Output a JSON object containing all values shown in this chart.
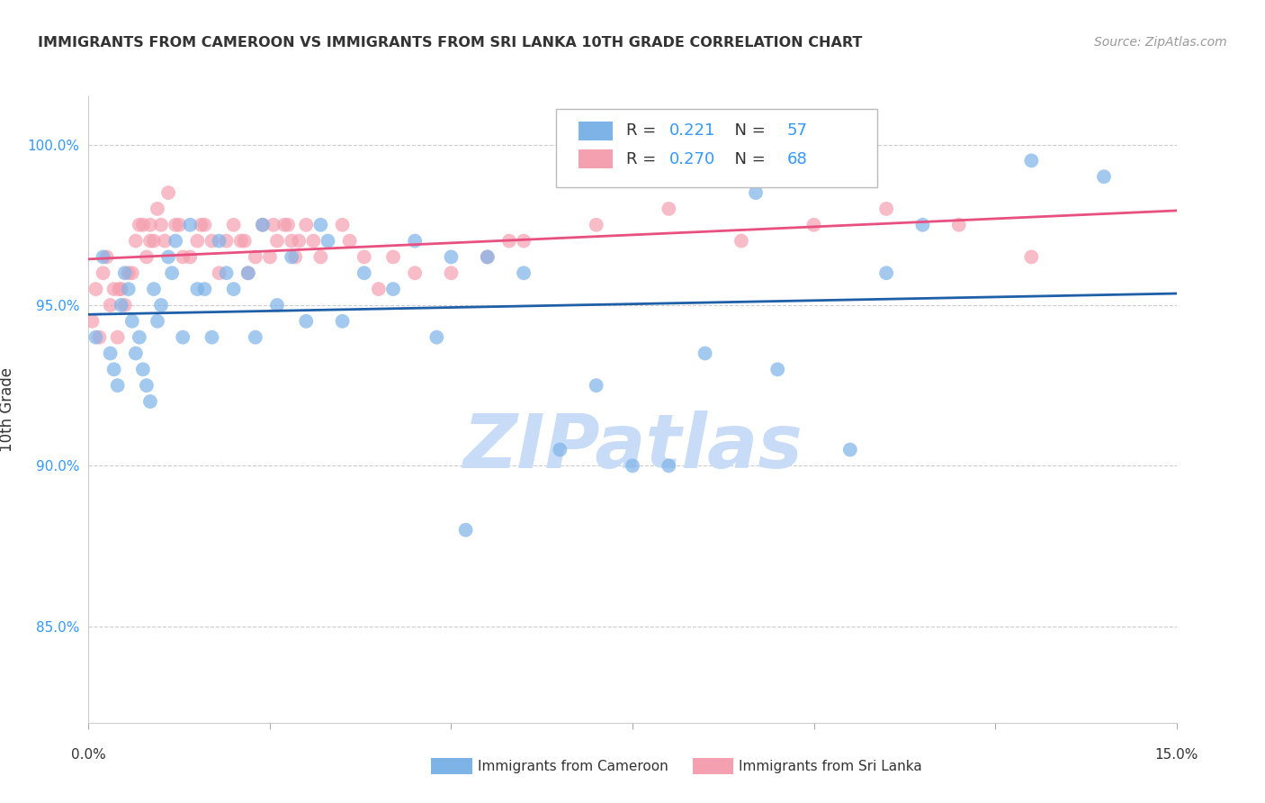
{
  "title": "IMMIGRANTS FROM CAMEROON VS IMMIGRANTS FROM SRI LANKA 10TH GRADE CORRELATION CHART",
  "source": "Source: ZipAtlas.com",
  "ylabel": "10th Grade",
  "xlim": [
    0.0,
    15.0
  ],
  "ylim": [
    82.0,
    101.5
  ],
  "yticks": [
    85.0,
    90.0,
    95.0,
    100.0
  ],
  "ytick_labels": [
    "85.0%",
    "90.0%",
    "95.0%",
    "100.0%"
  ],
  "xticks": [
    0.0,
    2.5,
    5.0,
    7.5,
    10.0,
    12.5,
    15.0
  ],
  "cameroon_R": 0.221,
  "cameroon_N": 57,
  "srilanka_R": 0.27,
  "srilanka_N": 68,
  "cameroon_color": "#7EB3E8",
  "srilanka_color": "#F4A0B0",
  "cameroon_line_color": "#1E5FA8",
  "srilanka_line_color": "#E85080",
  "watermark": "ZIPatlas",
  "watermark_color": "#C8DCF8",
  "blue_text_color": "#3399FF",
  "background_color": "#FFFFFF",
  "cameroon_x": [
    0.1,
    0.2,
    0.3,
    0.35,
    0.4,
    0.45,
    0.5,
    0.55,
    0.6,
    0.65,
    0.7,
    0.75,
    0.8,
    0.85,
    0.9,
    0.95,
    1.0,
    1.1,
    1.2,
    1.3,
    1.4,
    1.5,
    1.6,
    1.7,
    1.8,
    1.9,
    2.0,
    2.2,
    2.4,
    2.6,
    2.8,
    3.0,
    3.2,
    3.5,
    3.8,
    4.2,
    4.5,
    5.0,
    5.5,
    6.0,
    6.5,
    7.0,
    7.5,
    8.0,
    8.5,
    9.5,
    10.5,
    11.0,
    13.0,
    14.0,
    1.15,
    2.3,
    3.3,
    4.8,
    5.2,
    9.2,
    11.5
  ],
  "cameroon_y": [
    94.0,
    96.5,
    93.5,
    93.0,
    92.5,
    95.0,
    96.0,
    95.5,
    94.5,
    93.5,
    94.0,
    93.0,
    92.5,
    92.0,
    95.5,
    94.5,
    95.0,
    96.5,
    97.0,
    94.0,
    97.5,
    95.5,
    95.5,
    94.0,
    97.0,
    96.0,
    95.5,
    96.0,
    97.5,
    95.0,
    96.5,
    94.5,
    97.5,
    94.5,
    96.0,
    95.5,
    97.0,
    96.5,
    96.5,
    96.0,
    90.5,
    92.5,
    90.0,
    90.0,
    93.5,
    93.0,
    90.5,
    96.0,
    99.5,
    99.0,
    96.0,
    94.0,
    97.0,
    94.0,
    88.0,
    98.5,
    97.5
  ],
  "srilanka_x": [
    0.05,
    0.1,
    0.15,
    0.2,
    0.25,
    0.3,
    0.35,
    0.4,
    0.45,
    0.5,
    0.55,
    0.6,
    0.65,
    0.7,
    0.75,
    0.8,
    0.85,
    0.9,
    0.95,
    1.0,
    1.1,
    1.2,
    1.3,
    1.4,
    1.5,
    1.6,
    1.7,
    1.8,
    1.9,
    2.0,
    2.1,
    2.2,
    2.3,
    2.4,
    2.5,
    2.6,
    2.7,
    2.8,
    2.9,
    3.0,
    3.2,
    3.5,
    3.8,
    4.0,
    4.5,
    5.0,
    5.5,
    6.0,
    7.0,
    8.0,
    9.0,
    10.0,
    11.0,
    12.0,
    13.0,
    1.05,
    1.25,
    0.85,
    2.15,
    3.1,
    2.55,
    3.6,
    4.2,
    2.75,
    5.8,
    1.55,
    0.42,
    2.85
  ],
  "srilanka_y": [
    94.5,
    95.5,
    94.0,
    96.0,
    96.5,
    95.0,
    95.5,
    94.0,
    95.5,
    95.0,
    96.0,
    96.0,
    97.0,
    97.5,
    97.5,
    96.5,
    97.5,
    97.0,
    98.0,
    97.5,
    98.5,
    97.5,
    96.5,
    96.5,
    97.0,
    97.5,
    97.0,
    96.0,
    97.0,
    97.5,
    97.0,
    96.0,
    96.5,
    97.5,
    96.5,
    97.0,
    97.5,
    97.0,
    97.0,
    97.5,
    96.5,
    97.5,
    96.5,
    95.5,
    96.0,
    96.0,
    96.5,
    97.0,
    97.5,
    98.0,
    97.0,
    97.5,
    98.0,
    97.5,
    96.5,
    97.0,
    97.5,
    97.0,
    97.0,
    97.0,
    97.5,
    97.0,
    96.5,
    97.5,
    97.0,
    97.5,
    95.5,
    96.5
  ]
}
